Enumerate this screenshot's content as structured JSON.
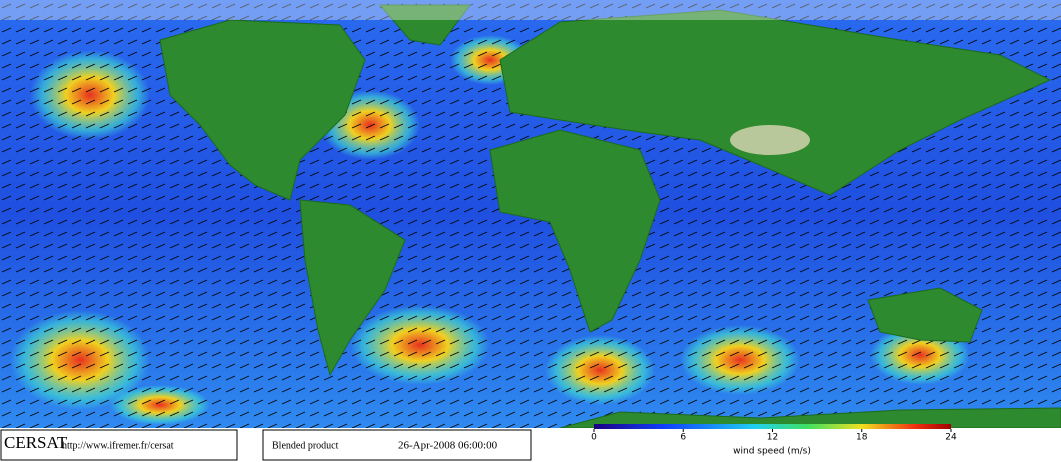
{
  "footer": {
    "logo": "CERSAT",
    "url": "http://www.ifremer.fr/cersat",
    "product": "Blended product",
    "date": "26-Apr-2008 06:00:00"
  },
  "colorbar": {
    "range": [
      0,
      24
    ],
    "ticks": [
      0,
      6,
      12,
      18,
      24
    ],
    "label": "wind speed (m/s)"
  }
}
